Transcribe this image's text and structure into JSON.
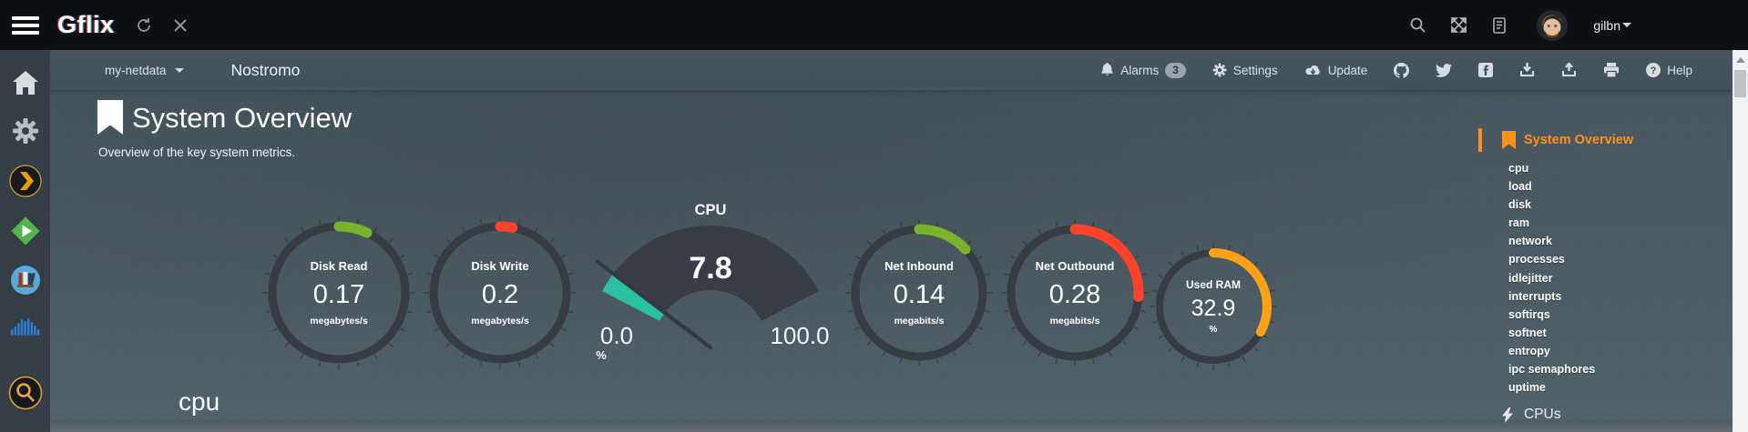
{
  "topbar": {
    "brand": "Gflix",
    "user": "gilbn"
  },
  "navbar": {
    "node_menu": "my-netdata",
    "hostname": "Nostromo",
    "alarms_label": "Alarms",
    "alarms_count": "3",
    "settings_label": "Settings",
    "update_label": "Update",
    "help_label": "Help",
    "help_qmark": "?"
  },
  "page": {
    "title": "System Overview",
    "subtitle": "Overview of the key system metrics.",
    "section_heading": "cpu"
  },
  "right_menu": {
    "active": "System Overview",
    "items": [
      "cpu",
      "load",
      "disk",
      "ram",
      "network",
      "processes",
      "idlejitter",
      "interrupts",
      "softirqs",
      "softnet",
      "entropy",
      "ipc semaphores",
      "uptime"
    ],
    "next_section": "CPUs"
  },
  "colors": {
    "accent_orange": "#ff9018",
    "gauge_track": "#373c43",
    "gauge_body": "#383d44",
    "needle": "#343942",
    "green": "#79b32b",
    "red": "#ff4229",
    "amber": "#ffa117",
    "teal": "#2bc0a2"
  },
  "chart_data": [
    {
      "type": "gauge",
      "style": "ring",
      "title": "Disk Read",
      "value": 0.17,
      "display": "0.17",
      "units": "megabytes/s",
      "arc_color": "#79b32b",
      "arc_pct": 7
    },
    {
      "type": "gauge",
      "style": "ring",
      "title": "Disk Write",
      "value": 0.2,
      "display": "0.2",
      "units": "megabytes/s",
      "arc_color": "#ff4229",
      "arc_pct": 3
    },
    {
      "type": "gauge",
      "style": "needle",
      "title": "CPU",
      "value": 7.8,
      "display": "7.8",
      "min": 0,
      "max": 100,
      "min_label": "0.0",
      "max_label": "100.0",
      "units": "%",
      "fill_color": "#2bc0a2",
      "span_deg": 125
    },
    {
      "type": "gauge",
      "style": "ring",
      "title": "Net Inbound",
      "value": 0.14,
      "display": "0.14",
      "units": "megabits/s",
      "arc_color": "#79b32b",
      "arc_pct": 13
    },
    {
      "type": "gauge",
      "style": "ring",
      "title": "Net Outbound",
      "value": 0.28,
      "display": "0.28",
      "units": "megabits/s",
      "arc_color": "#ff4229",
      "arc_pct": 26
    },
    {
      "type": "gauge",
      "style": "ring",
      "title": "Used RAM",
      "value": 32.9,
      "display": "32.9",
      "units": "%",
      "arc_color": "#ffa117",
      "arc_pct": 32.9
    }
  ]
}
